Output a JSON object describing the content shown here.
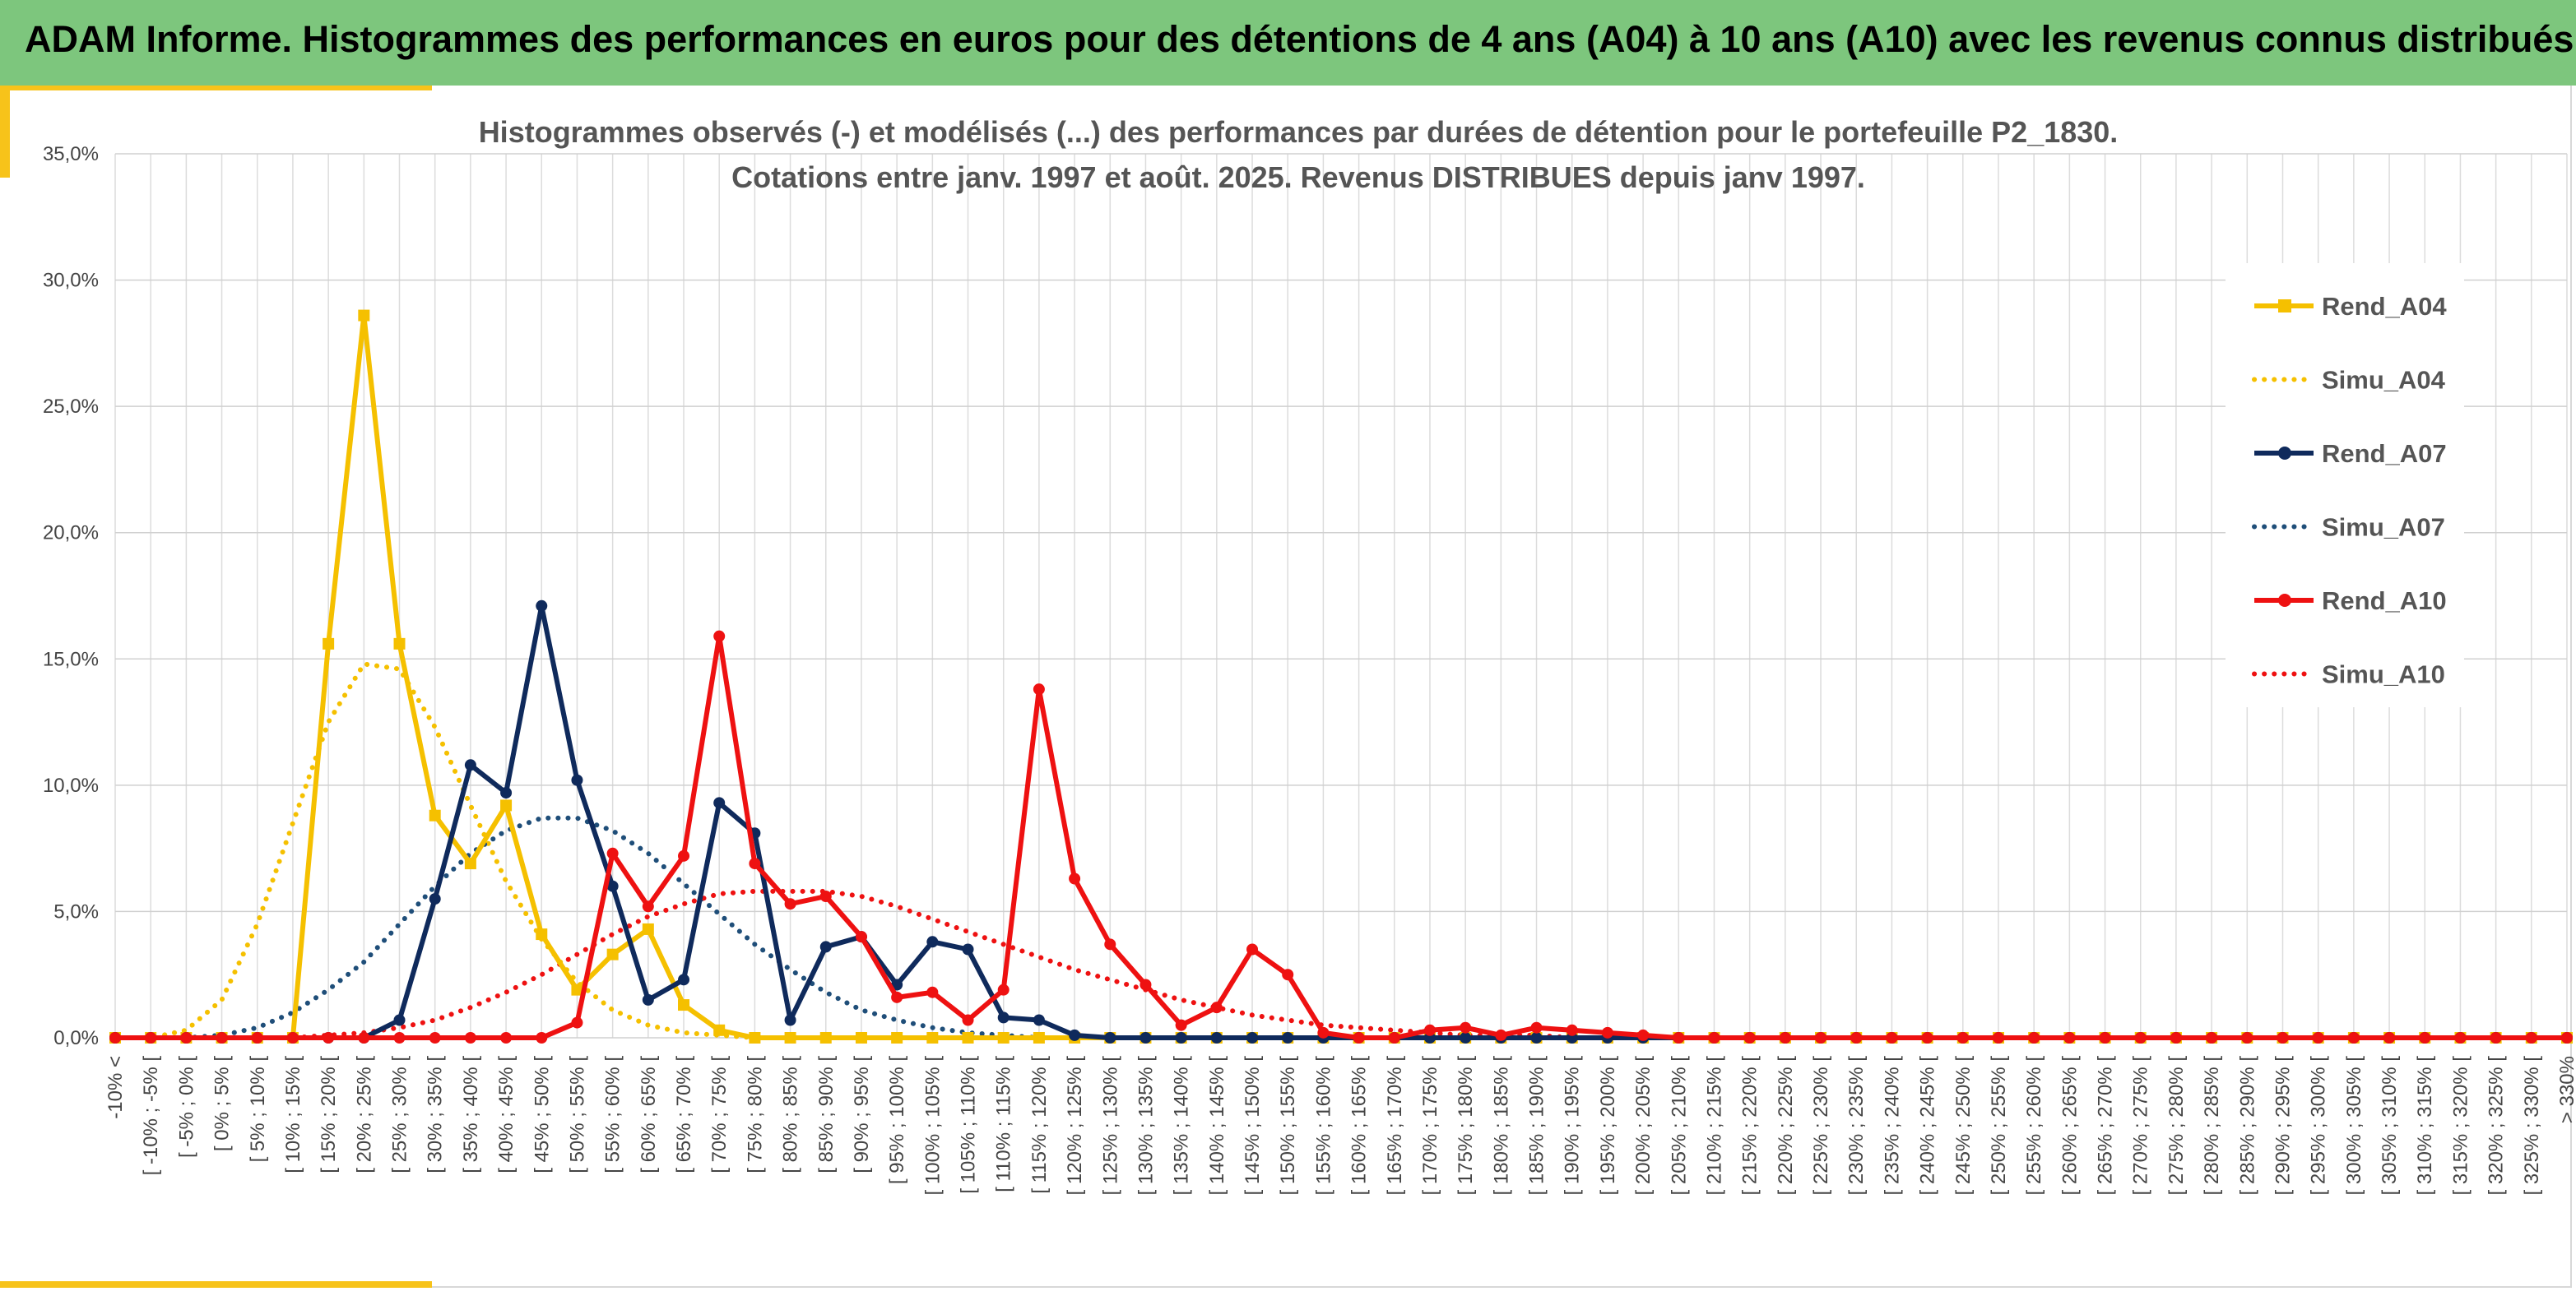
{
  "header": {
    "title": "ADAM Informe. Histogrammes des performances en euros pour des détentions de 4 ans (A04) à 10 ans (A10) avec les revenus connus distribués"
  },
  "chart_data": {
    "type": "line",
    "title": "Histogrammes observés (-) et modélisés (...) des performances par durées de détention pour le portefeuille P2_1830.",
    "subtitle": "Cotations entre janv. 1997 et août. 2025. Revenus DISTRIBUES depuis janv 1997.",
    "xlabel": "",
    "ylabel": "",
    "ylim": [
      0,
      35
    ],
    "yticks": [
      "0,0%",
      "5,0%",
      "10,0%",
      "15,0%",
      "20,0%",
      "25,0%",
      "30,0%",
      "35,0%"
    ],
    "grid": true,
    "legend_position": "right",
    "categories": [
      "-10% <",
      "[ -10% ; -5% [",
      "[ -5% ; 0% [",
      "[ 0% ; 5% [",
      "[ 5% ; 10% [",
      "[ 10% ; 15% [",
      "[ 15% ; 20% [",
      "[ 20% ; 25% [",
      "[ 25% ; 30% [",
      "[ 30% ; 35% [",
      "[ 35% ; 40% [",
      "[ 40% ; 45% [",
      "[ 45% ; 50% [",
      "[ 50% ; 55% [",
      "[ 55% ; 60% [",
      "[ 60% ; 65% [",
      "[ 65% ; 70% [",
      "[ 70% ; 75% [",
      "[ 75% ; 80% [",
      "[ 80% ; 85% [",
      "[ 85% ; 90% [",
      "[ 90% ; 95% [",
      "[ 95% ; 100% [",
      "[ 100% ; 105% [",
      "[ 105% ; 110% [",
      "[ 110% ; 115% [",
      "[ 115% ; 120% [",
      "[ 120% ; 125% [",
      "[ 125% ; 130% [",
      "[ 130% ; 135% [",
      "[ 135% ; 140% [",
      "[ 140% ; 145% [",
      "[ 145% ; 150% [",
      "[ 150% ; 155% [",
      "[ 155% ; 160% [",
      "[ 160% ; 165% [",
      "[ 165% ; 170% [",
      "[ 170% ; 175% [",
      "[ 175% ; 180% [",
      "[ 180% ; 185% [",
      "[ 185% ; 190% [",
      "[ 190% ; 195% [",
      "[ 195% ; 200% [",
      "[ 200% ; 205% [",
      "[ 205% ; 210% [",
      "[ 210% ; 215% [",
      "[ 215% ; 220% [",
      "[ 220% ; 225% [",
      "[ 225% ; 230% [",
      "[ 230% ; 235% [",
      "[ 235% ; 240% [",
      "[ 240% ; 245% [",
      "[ 245% ; 250% [",
      "[ 250% ; 255% [",
      "[ 255% ; 260% [",
      "[ 260% ; 265% [",
      "[ 265% ; 270% [",
      "[ 270% ; 275% [",
      "[ 275% ; 280% [",
      "[ 280% ; 285% [",
      "[ 285% ; 290% [",
      "[ 290% ; 295% [",
      "[ 295% ; 300% [",
      "[ 300% ; 305% [",
      "[ 305% ; 310% [",
      "[ 310% ; 315% [",
      "[ 315% ; 320% [",
      "[ 320% ; 325% [",
      "[ 325% ; 330% [",
      "> 330%"
    ],
    "series": [
      {
        "name": "Rend_A04",
        "color": "#f5c000",
        "style": "solid",
        "marker": "square",
        "values": [
          0,
          0,
          0,
          0,
          0,
          0,
          15.6,
          28.6,
          15.6,
          8.8,
          6.9,
          9.2,
          4.1,
          1.9,
          3.3,
          4.3,
          1.3,
          0.3,
          0,
          0,
          0,
          0,
          0,
          0,
          0,
          0,
          0,
          0,
          0,
          0,
          0,
          0,
          0,
          0,
          0,
          0,
          0,
          0,
          0,
          0,
          0,
          0,
          0,
          0,
          0,
          0,
          0,
          0,
          0,
          0,
          0,
          0,
          0,
          0,
          0,
          0,
          0,
          0,
          0,
          0,
          0,
          0,
          0,
          0,
          0,
          0,
          0,
          0,
          0,
          0
        ]
      },
      {
        "name": "Simu_A04",
        "color": "#f5c000",
        "style": "dotted",
        "values": [
          0,
          0,
          0.3,
          1.5,
          4.5,
          8.5,
          12.5,
          14.8,
          14.6,
          12.3,
          9.2,
          6.2,
          3.9,
          2.2,
          1.1,
          0.5,
          0.2,
          0.1,
          0,
          0,
          0,
          0,
          0,
          0,
          0,
          0,
          0,
          0,
          0,
          0,
          0,
          0,
          0,
          0,
          0,
          0,
          0,
          0,
          0,
          0,
          0,
          0,
          0,
          0,
          0,
          0,
          0,
          0,
          0,
          0,
          0,
          0,
          0,
          0,
          0,
          0,
          0,
          0,
          0,
          0,
          0,
          0,
          0,
          0,
          0,
          0,
          0,
          0,
          0,
          0
        ]
      },
      {
        "name": "Rend_A07",
        "color": "#0f2a5c",
        "style": "solid",
        "marker": "circle",
        "values": [
          0,
          0,
          0,
          0,
          0,
          0,
          0,
          0,
          0.7,
          5.5,
          10.8,
          9.7,
          17.1,
          10.2,
          6.0,
          1.5,
          2.3,
          9.3,
          8.1,
          0.7,
          3.6,
          4.0,
          2.1,
          3.8,
          3.5,
          0.8,
          0.7,
          0.1,
          0,
          0,
          0,
          0,
          0,
          0,
          0,
          0,
          0,
          0,
          0,
          0,
          0,
          0,
          0,
          0,
          0,
          0,
          0,
          0,
          0,
          0,
          0,
          0,
          0,
          0,
          0,
          0,
          0,
          0,
          0,
          0,
          0,
          0,
          0,
          0,
          0,
          0,
          0,
          0,
          0,
          0
        ]
      },
      {
        "name": "Simu_A07",
        "color": "#1f4e79",
        "style": "dotted",
        "values": [
          0,
          0,
          0,
          0.1,
          0.4,
          1.0,
          1.9,
          3.0,
          4.5,
          6.0,
          7.3,
          8.2,
          8.7,
          8.7,
          8.2,
          7.3,
          6.1,
          4.9,
          3.7,
          2.7,
          1.8,
          1.1,
          0.7,
          0.4,
          0.2,
          0.1,
          0,
          0,
          0,
          0,
          0,
          0,
          0,
          0,
          0,
          0,
          0,
          0,
          0,
          0,
          0,
          0,
          0,
          0,
          0,
          0,
          0,
          0,
          0,
          0,
          0,
          0,
          0,
          0,
          0,
          0,
          0,
          0,
          0,
          0,
          0,
          0,
          0,
          0,
          0,
          0,
          0,
          0,
          0,
          0
        ]
      },
      {
        "name": "Rend_A10",
        "color": "#ee1111",
        "style": "solid",
        "marker": "circle",
        "values": [
          0,
          0,
          0,
          0,
          0,
          0,
          0,
          0,
          0,
          0,
          0,
          0,
          0,
          0.6,
          7.3,
          5.2,
          7.2,
          15.9,
          6.9,
          5.3,
          5.6,
          4.0,
          1.6,
          1.8,
          0.7,
          1.9,
          13.8,
          6.3,
          3.7,
          2.1,
          0.5,
          1.2,
          3.5,
          2.5,
          0.2,
          0,
          0,
          0.3,
          0.4,
          0.1,
          0.4,
          0.3,
          0.2,
          0.1,
          0,
          0,
          0,
          0,
          0,
          0,
          0,
          0,
          0,
          0,
          0,
          0,
          0,
          0,
          0,
          0,
          0,
          0,
          0,
          0,
          0,
          0,
          0,
          0,
          0,
          0
        ]
      },
      {
        "name": "Simu_A10",
        "color": "#ee1111",
        "style": "dotted",
        "values": [
          0,
          0,
          0,
          0,
          0,
          0,
          0.1,
          0.2,
          0.4,
          0.7,
          1.2,
          1.8,
          2.5,
          3.3,
          4.1,
          4.8,
          5.3,
          5.7,
          5.8,
          5.8,
          5.8,
          5.6,
          5.2,
          4.7,
          4.2,
          3.7,
          3.2,
          2.7,
          2.3,
          1.9,
          1.5,
          1.2,
          0.9,
          0.7,
          0.5,
          0.4,
          0.3,
          0.2,
          0.1,
          0.1,
          0.1,
          0,
          0,
          0,
          0,
          0,
          0,
          0,
          0,
          0,
          0,
          0,
          0,
          0,
          0,
          0,
          0,
          0,
          0,
          0,
          0,
          0,
          0,
          0,
          0,
          0,
          0,
          0,
          0,
          0
        ]
      }
    ]
  }
}
